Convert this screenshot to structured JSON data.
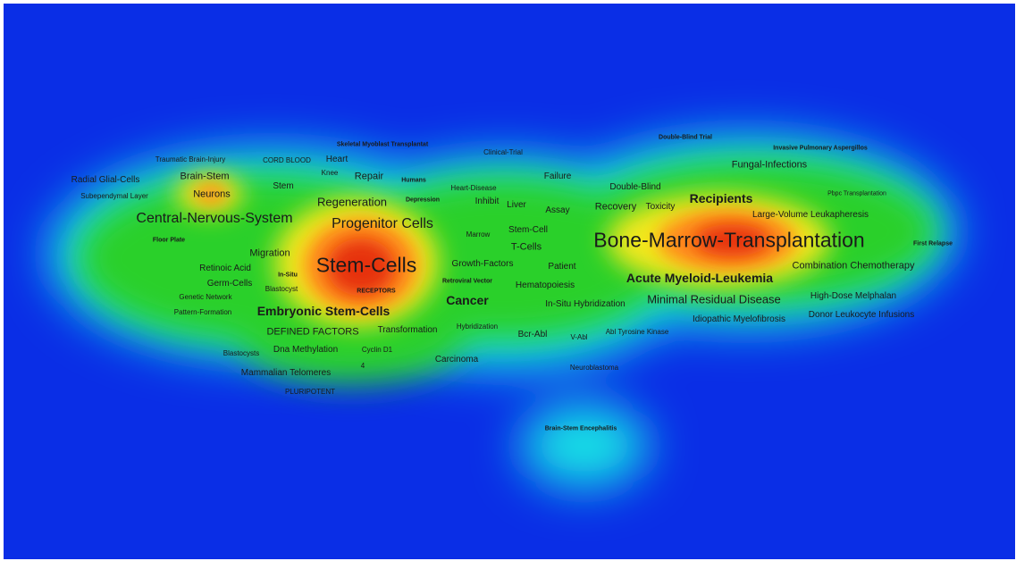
{
  "density_colors": {
    "background": "#0a2ee6",
    "cyan": "#18e0e6",
    "green": "#2bd02b",
    "yellow": "#f2e81a",
    "orange": "#ff8a1a",
    "red": "#e63311"
  },
  "terms": [
    {
      "id": "skeletal-myoblast-transplantat",
      "label": "Skeletal Myoblast Transplantat"
    },
    {
      "id": "clinical-trial",
      "label": "Clinical-Trial"
    },
    {
      "id": "double-blind-trial",
      "label": "Double-Blind Trial"
    },
    {
      "id": "invasive-pulmonary-aspergillos",
      "label": "Invasive Pulmonary Aspergillos"
    },
    {
      "id": "traumatic-brain-injury",
      "label": "Traumatic Brain-Injury"
    },
    {
      "id": "cord-blood",
      "label": "CORD BLOOD"
    },
    {
      "id": "heart",
      "label": "Heart"
    },
    {
      "id": "fungal-infections",
      "label": "Fungal-Infections"
    },
    {
      "id": "radial-glial-cells",
      "label": "Radial Glial-Cells"
    },
    {
      "id": "brain-stem",
      "label": "Brain-Stem"
    },
    {
      "id": "knee",
      "label": "Knee"
    },
    {
      "id": "repair",
      "label": "Repair"
    },
    {
      "id": "humans",
      "label": "Humans"
    },
    {
      "id": "failure",
      "label": "Failure"
    },
    {
      "id": "stem",
      "label": "Stem"
    },
    {
      "id": "heart-disease",
      "label": "Heart-Disease"
    },
    {
      "id": "double-blind",
      "label": "Double-Blind"
    },
    {
      "id": "subependymal-layer",
      "label": "Subependymal Layer"
    },
    {
      "id": "neurons",
      "label": "Neurons"
    },
    {
      "id": "regeneration",
      "label": "Regeneration"
    },
    {
      "id": "depression",
      "label": "Depression"
    },
    {
      "id": "inhibit",
      "label": "Inhibit"
    },
    {
      "id": "liver",
      "label": "Liver"
    },
    {
      "id": "recipients",
      "label": "Recipients"
    },
    {
      "id": "pbpc-transplantation",
      "label": "Pbpc Transplantation"
    },
    {
      "id": "assay",
      "label": "Assay"
    },
    {
      "id": "recovery",
      "label": "Recovery"
    },
    {
      "id": "toxicity",
      "label": "Toxicity"
    },
    {
      "id": "central-nervous-system",
      "label": "Central-Nervous-System"
    },
    {
      "id": "progenitor-cells",
      "label": "Progenitor Cells"
    },
    {
      "id": "large-volume-leukapheresis",
      "label": "Large-Volume Leukapheresis"
    },
    {
      "id": "stem-cell",
      "label": "Stem-Cell"
    },
    {
      "id": "marrow",
      "label": "Marrow"
    },
    {
      "id": "floor-plate",
      "label": "Floor Plate"
    },
    {
      "id": "bone-marrow-transplantation",
      "label": "Bone-Marrow-Transplantation"
    },
    {
      "id": "t-cells",
      "label": "T-Cells"
    },
    {
      "id": "first-relapse",
      "label": "First Relapse"
    },
    {
      "id": "migration",
      "label": "Migration"
    },
    {
      "id": "stem-cells",
      "label": "Stem-Cells"
    },
    {
      "id": "growth-factors",
      "label": "Growth-Factors"
    },
    {
      "id": "patient",
      "label": "Patient"
    },
    {
      "id": "combination-chemotherapy",
      "label": "Combination Chemotherapy"
    },
    {
      "id": "retinoic-acid",
      "label": "Retinoic Acid"
    },
    {
      "id": "in-situ",
      "label": "In-Situ"
    },
    {
      "id": "acute-myeloid-leukemia",
      "label": "Acute Myeloid-Leukemia"
    },
    {
      "id": "retroviral-vector",
      "label": "Retroviral Vector"
    },
    {
      "id": "germ-cells",
      "label": "Germ-Cells"
    },
    {
      "id": "hematopoiesis",
      "label": "Hematopoiesis"
    },
    {
      "id": "blastocyst",
      "label": "Blastocyst"
    },
    {
      "id": "receptors",
      "label": "RECEPTORS"
    },
    {
      "id": "genetic-network",
      "label": "Genetic Network"
    },
    {
      "id": "cancer",
      "label": "Cancer"
    },
    {
      "id": "minimal-residual-disease",
      "label": "Minimal Residual Disease"
    },
    {
      "id": "high-dose-melphalan",
      "label": "High-Dose Melphalan"
    },
    {
      "id": "in-situ-hybridization",
      "label": "In-Situ Hybridization"
    },
    {
      "id": "pattern-formation",
      "label": "Pattern-Formation"
    },
    {
      "id": "embryonic-stem-cells",
      "label": "Embryonic Stem-Cells"
    },
    {
      "id": "donor-leukocyte-infusions",
      "label": "Donor Leukocyte Infusions"
    },
    {
      "id": "idiopathic-myelofibrosis",
      "label": "Idiopathic Myelofibrosis"
    },
    {
      "id": "hybridization",
      "label": "Hybridization"
    },
    {
      "id": "transformation",
      "label": "Transformation"
    },
    {
      "id": "defined-factors",
      "label": "DEFINED FACTORS"
    },
    {
      "id": "abl-tyrosine-kinase",
      "label": "Abl Tyrosine Kinase"
    },
    {
      "id": "bcr-abl",
      "label": "Bcr-Abl"
    },
    {
      "id": "v-abl",
      "label": "V-Abl"
    },
    {
      "id": "dna-methylation",
      "label": "Dna Methylation"
    },
    {
      "id": "cyclin-d1",
      "label": "Cyclin D1"
    },
    {
      "id": "blastocysts",
      "label": "Blastocysts"
    },
    {
      "id": "carcinoma",
      "label": "Carcinoma"
    },
    {
      "id": "neuroblastoma",
      "label": "Neuroblastoma"
    },
    {
      "id": "mammalian-telomeres",
      "label": "Mammalian Telomeres"
    },
    {
      "id": "four",
      "label": "4"
    },
    {
      "id": "pluripotent",
      "label": "PLURIPOTENT"
    },
    {
      "id": "brain-stem-encephalitis",
      "label": "Brain-Stem Encephalitis"
    }
  ]
}
